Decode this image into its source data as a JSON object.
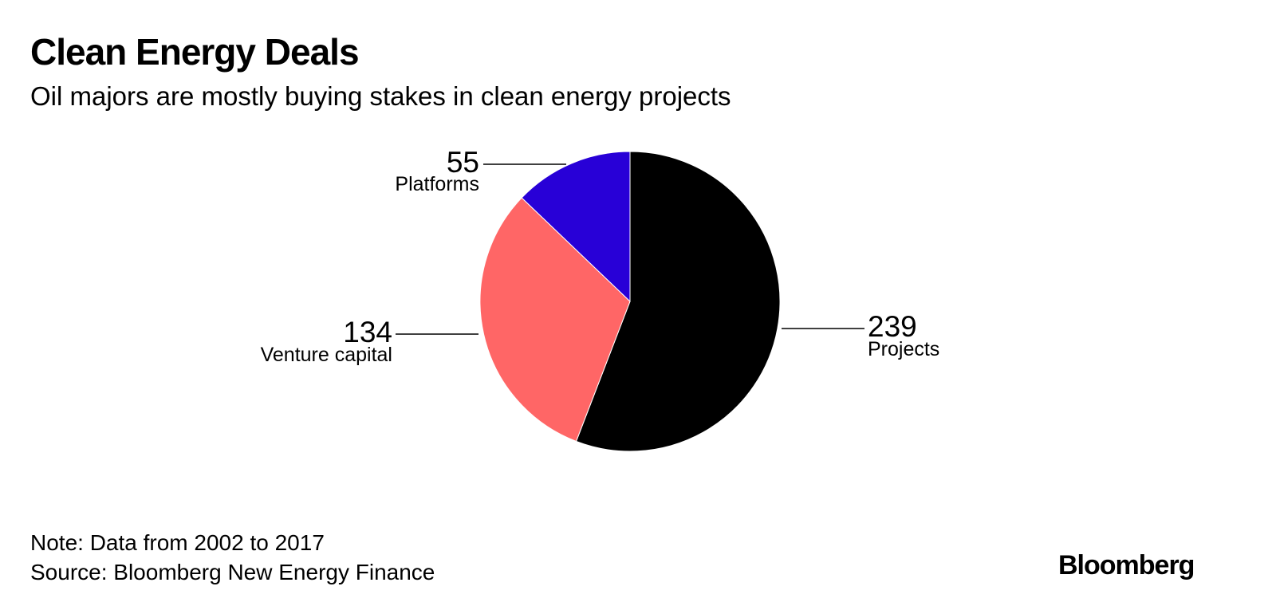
{
  "header": {
    "title": "Clean Energy Deals",
    "subtitle": "Oil majors are mostly buying stakes in clean energy projects"
  },
  "footer": {
    "note": "Note: Data from 2002 to 2017",
    "source": "Source: Bloomberg New Energy Finance",
    "logo": "Bloomberg"
  },
  "chart_data": {
    "type": "pie",
    "title": "Clean Energy Deals",
    "subtitle": "Oil majors are mostly buying stakes in clean energy projects",
    "categories": [
      "Projects",
      "Venture capital",
      "Platforms"
    ],
    "values": [
      239,
      134,
      55
    ],
    "colors": [
      "#000000",
      "#ff6666",
      "#2800d7"
    ],
    "start": "12 o'clock",
    "direction": "clockwise",
    "legend": "none",
    "label_style": "external value + category with leader lines"
  }
}
